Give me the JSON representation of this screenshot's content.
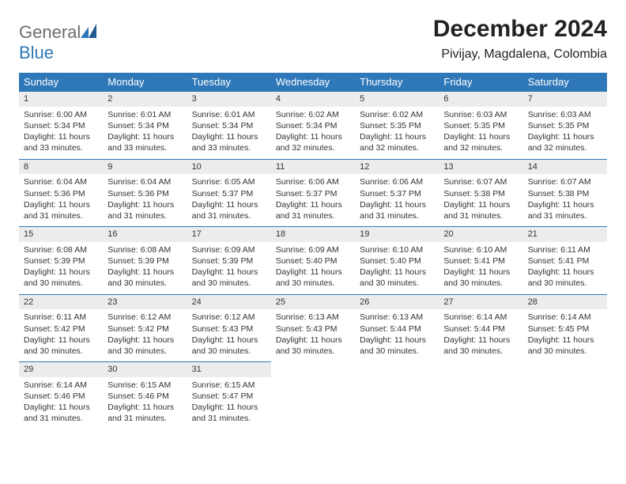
{
  "logo": {
    "word1": "General",
    "word2": "Blue"
  },
  "title": "December 2024",
  "subtitle": "Pivijay, Magdalena, Colombia",
  "colors": {
    "brand": "#2e77b8",
    "header_bg": "#2e77b8",
    "header_text": "#ffffff",
    "daynum_bg": "#ececec",
    "rule": "#2e77b8"
  },
  "fonts": {
    "title_pt": 30,
    "subtitle_pt": 16,
    "header_pt": 13,
    "body_pt": 10.5
  },
  "layout": {
    "cols": 7,
    "rows": 5,
    "first_weekday": "Sunday"
  },
  "weekdays": [
    "Sunday",
    "Monday",
    "Tuesday",
    "Wednesday",
    "Thursday",
    "Friday",
    "Saturday"
  ],
  "days": [
    {
      "n": 1,
      "sr": "6:00 AM",
      "ss": "5:34 PM",
      "dl": "11 hours and 33 minutes."
    },
    {
      "n": 2,
      "sr": "6:01 AM",
      "ss": "5:34 PM",
      "dl": "11 hours and 33 minutes."
    },
    {
      "n": 3,
      "sr": "6:01 AM",
      "ss": "5:34 PM",
      "dl": "11 hours and 33 minutes."
    },
    {
      "n": 4,
      "sr": "6:02 AM",
      "ss": "5:34 PM",
      "dl": "11 hours and 32 minutes."
    },
    {
      "n": 5,
      "sr": "6:02 AM",
      "ss": "5:35 PM",
      "dl": "11 hours and 32 minutes."
    },
    {
      "n": 6,
      "sr": "6:03 AM",
      "ss": "5:35 PM",
      "dl": "11 hours and 32 minutes."
    },
    {
      "n": 7,
      "sr": "6:03 AM",
      "ss": "5:35 PM",
      "dl": "11 hours and 32 minutes."
    },
    {
      "n": 8,
      "sr": "6:04 AM",
      "ss": "5:36 PM",
      "dl": "11 hours and 31 minutes."
    },
    {
      "n": 9,
      "sr": "6:04 AM",
      "ss": "5:36 PM",
      "dl": "11 hours and 31 minutes."
    },
    {
      "n": 10,
      "sr": "6:05 AM",
      "ss": "5:37 PM",
      "dl": "11 hours and 31 minutes."
    },
    {
      "n": 11,
      "sr": "6:06 AM",
      "ss": "5:37 PM",
      "dl": "11 hours and 31 minutes."
    },
    {
      "n": 12,
      "sr": "6:06 AM",
      "ss": "5:37 PM",
      "dl": "11 hours and 31 minutes."
    },
    {
      "n": 13,
      "sr": "6:07 AM",
      "ss": "5:38 PM",
      "dl": "11 hours and 31 minutes."
    },
    {
      "n": 14,
      "sr": "6:07 AM",
      "ss": "5:38 PM",
      "dl": "11 hours and 31 minutes."
    },
    {
      "n": 15,
      "sr": "6:08 AM",
      "ss": "5:39 PM",
      "dl": "11 hours and 30 minutes."
    },
    {
      "n": 16,
      "sr": "6:08 AM",
      "ss": "5:39 PM",
      "dl": "11 hours and 30 minutes."
    },
    {
      "n": 17,
      "sr": "6:09 AM",
      "ss": "5:39 PM",
      "dl": "11 hours and 30 minutes."
    },
    {
      "n": 18,
      "sr": "6:09 AM",
      "ss": "5:40 PM",
      "dl": "11 hours and 30 minutes."
    },
    {
      "n": 19,
      "sr": "6:10 AM",
      "ss": "5:40 PM",
      "dl": "11 hours and 30 minutes."
    },
    {
      "n": 20,
      "sr": "6:10 AM",
      "ss": "5:41 PM",
      "dl": "11 hours and 30 minutes."
    },
    {
      "n": 21,
      "sr": "6:11 AM",
      "ss": "5:41 PM",
      "dl": "11 hours and 30 minutes."
    },
    {
      "n": 22,
      "sr": "6:11 AM",
      "ss": "5:42 PM",
      "dl": "11 hours and 30 minutes."
    },
    {
      "n": 23,
      "sr": "6:12 AM",
      "ss": "5:42 PM",
      "dl": "11 hours and 30 minutes."
    },
    {
      "n": 24,
      "sr": "6:12 AM",
      "ss": "5:43 PM",
      "dl": "11 hours and 30 minutes."
    },
    {
      "n": 25,
      "sr": "6:13 AM",
      "ss": "5:43 PM",
      "dl": "11 hours and 30 minutes."
    },
    {
      "n": 26,
      "sr": "6:13 AM",
      "ss": "5:44 PM",
      "dl": "11 hours and 30 minutes."
    },
    {
      "n": 27,
      "sr": "6:14 AM",
      "ss": "5:44 PM",
      "dl": "11 hours and 30 minutes."
    },
    {
      "n": 28,
      "sr": "6:14 AM",
      "ss": "5:45 PM",
      "dl": "11 hours and 30 minutes."
    },
    {
      "n": 29,
      "sr": "6:14 AM",
      "ss": "5:46 PM",
      "dl": "11 hours and 31 minutes."
    },
    {
      "n": 30,
      "sr": "6:15 AM",
      "ss": "5:46 PM",
      "dl": "11 hours and 31 minutes."
    },
    {
      "n": 31,
      "sr": "6:15 AM",
      "ss": "5:47 PM",
      "dl": "11 hours and 31 minutes."
    }
  ],
  "labels": {
    "sunrise": "Sunrise:",
    "sunset": "Sunset:",
    "daylight": "Daylight:"
  }
}
